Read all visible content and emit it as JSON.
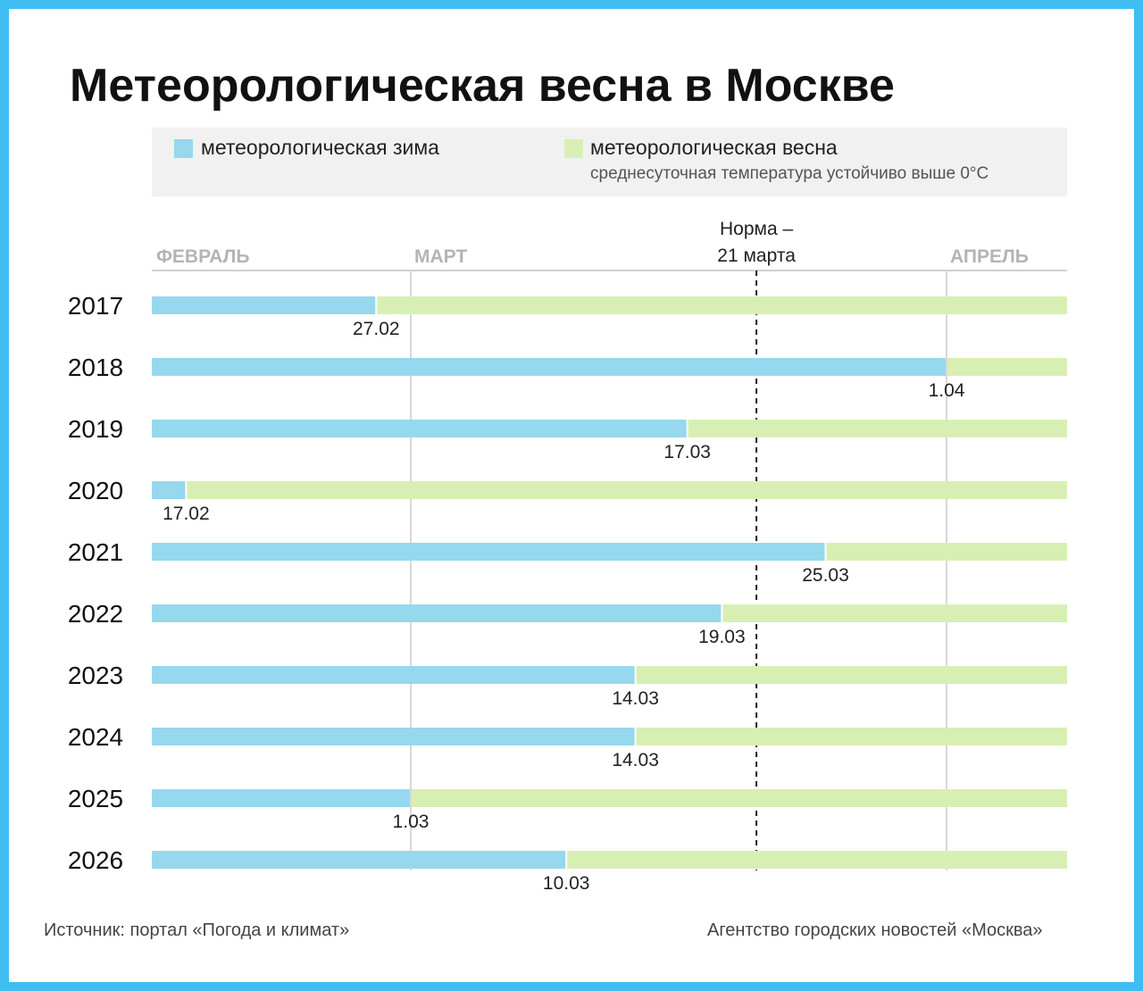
{
  "title": "Метеорологическая весна в Москве",
  "legend": {
    "winter": "метеорологическая зима",
    "spring": "метеорологическая весна",
    "spring_note": "среднесуточная температура устойчиво выше 0°C"
  },
  "footer": {
    "source": "Источник: портал «Погода и климат»",
    "agency": "Агентство городских новостей «Москва»"
  },
  "colors": {
    "winter": "#96d8ee",
    "spring": "#d8efb4",
    "border": "#3fbdf0"
  },
  "chart_data": {
    "type": "bar",
    "orientation": "horizontal-stacked",
    "title": "Метеорологическая весна в Москве",
    "x_axis": {
      "months": [
        "ФЕВРАЛЬ",
        "МАРТ",
        "АПРЕЛЬ"
      ],
      "range_days_from_march_1": [
        -15,
        38
      ]
    },
    "norm": {
      "line1": "Норма –",
      "line2": "21 марта",
      "day": 21,
      "month": 3
    },
    "categories": [
      "2017",
      "2018",
      "2019",
      "2020",
      "2021",
      "2022",
      "2023",
      "2024",
      "2025",
      "2026"
    ],
    "spring_start": [
      {
        "year": "2017",
        "label": "27.02",
        "day": 27,
        "month": 2
      },
      {
        "year": "2018",
        "label": "1.04",
        "day": 1,
        "month": 4
      },
      {
        "year": "2019",
        "label": "17.03",
        "day": 17,
        "month": 3
      },
      {
        "year": "2020",
        "label": "17.02",
        "day": 17,
        "month": 2
      },
      {
        "year": "2021",
        "label": "25.03",
        "day": 25,
        "month": 3
      },
      {
        "year": "2022",
        "label": "19.03",
        "day": 19,
        "month": 3
      },
      {
        "year": "2023",
        "label": "14.03",
        "day": 14,
        "month": 3
      },
      {
        "year": "2024",
        "label": "14.03",
        "day": 14,
        "month": 3
      },
      {
        "year": "2025",
        "label": "1.03",
        "day": 1,
        "month": 3
      },
      {
        "year": "2026",
        "label": "10.03",
        "day": 10,
        "month": 3
      }
    ]
  }
}
